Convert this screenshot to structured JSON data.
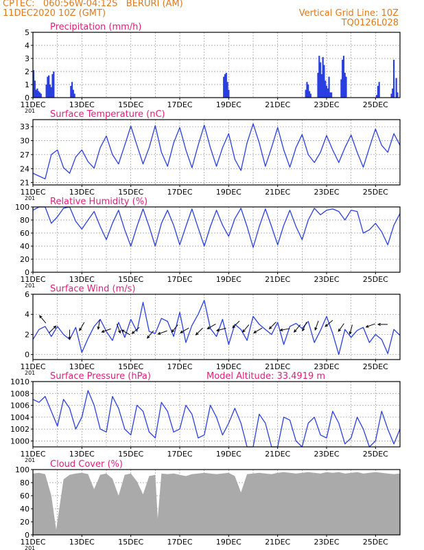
{
  "header": {
    "line1": "CPTEC:   060:56W-04:12S   BERURI (AM)",
    "line2": "11DEC2020 10Z (GMT)",
    "grid_note": "Vertical Grid Line: 10Z",
    "run_code": "TQ0126L028"
  },
  "colors": {
    "header": "#e07a1f",
    "panel_title": "#e0207a",
    "series": "#2a3fe0",
    "bars": "#2a3fe0",
    "cloud": "#aaaaaa",
    "grid": "#9a9a9a",
    "arrows": "#000000"
  },
  "x_axis": {
    "start": "11DEC2020 10Z",
    "end": "26DEC2020 10Z",
    "tick_labels": [
      "11DEC",
      "13DEC",
      "15DEC",
      "17DEC",
      "19DEC",
      "21DEC",
      "23DEC",
      "25DEC"
    ],
    "tick_days": [
      0,
      2,
      4,
      6,
      8,
      10,
      12,
      14
    ],
    "grid_days": [
      1,
      2,
      3,
      4,
      5,
      6,
      7,
      8,
      9,
      10,
      11,
      12,
      13,
      14
    ],
    "left_stub": "201"
  },
  "chart_data": [
    {
      "id": "precip",
      "type": "bar",
      "title": "Precipitation (mm/h)",
      "ylim": [
        0,
        5
      ],
      "yticks": [
        0,
        1,
        2,
        3,
        4,
        5
      ],
      "grid": true,
      "x_unit": "days after 11DEC 10Z",
      "x": [
        0.03,
        0.08,
        0.13,
        0.18,
        0.23,
        0.28,
        0.33,
        0.55,
        0.6,
        0.65,
        0.7,
        0.75,
        0.8,
        0.85,
        1.55,
        1.6,
        1.65,
        1.7,
        7.8,
        7.85,
        7.9,
        7.95,
        8.0,
        11.15,
        11.2,
        11.25,
        11.3,
        11.35,
        11.65,
        11.7,
        11.75,
        11.8,
        11.85,
        11.9,
        11.95,
        12.0,
        12.05,
        12.1,
        12.15,
        12.2,
        12.6,
        12.65,
        12.7,
        12.75,
        12.8,
        14.05,
        14.1,
        14.15,
        14.65,
        14.7,
        14.75,
        14.85,
        14.9
      ],
      "values": [
        2.1,
        1.3,
        0.6,
        0.7,
        0.5,
        0.4,
        0.3,
        1.0,
        1.6,
        1.7,
        1.0,
        0.8,
        1.8,
        2.0,
        0.9,
        1.2,
        0.6,
        0.3,
        1.6,
        1.8,
        1.9,
        1.2,
        0.6,
        0.6,
        1.2,
        1.0,
        0.5,
        0.3,
        1.9,
        3.2,
        2.7,
        1.8,
        3.1,
        2.5,
        1.3,
        0.9,
        0.7,
        1.6,
        0.4,
        0.4,
        1.4,
        2.9,
        3.2,
        1.9,
        1.6,
        0.2,
        0.9,
        1.2,
        0.3,
        0.7,
        2.9,
        1.5,
        0.4
      ]
    },
    {
      "id": "temp",
      "type": "line",
      "title": "Surface Temperature (nC)",
      "ylim": [
        20.5,
        34.5
      ],
      "yticks": [
        21,
        24,
        27,
        30,
        33
      ],
      "grid": true,
      "x_unit": "days after 11DEC 10Z",
      "x": [
        0,
        0.25,
        0.5,
        0.75,
        1,
        1.25,
        1.5,
        1.75,
        2,
        2.25,
        2.5,
        2.75,
        3,
        3.25,
        3.5,
        3.75,
        4,
        4.25,
        4.5,
        4.75,
        5,
        5.25,
        5.5,
        5.75,
        6,
        6.25,
        6.5,
        6.75,
        7,
        7.25,
        7.5,
        7.75,
        8,
        8.25,
        8.5,
        8.75,
        9,
        9.25,
        9.5,
        9.75,
        10,
        10.25,
        10.5,
        10.75,
        11,
        11.25,
        11.5,
        11.75,
        12,
        12.25,
        12.5,
        12.75,
        13,
        13.25,
        13.5,
        13.75,
        14,
        14.25,
        14.5,
        14.75,
        15
      ],
      "values": [
        23,
        22.4,
        21.8,
        27,
        28,
        24.2,
        23,
        26.5,
        28,
        25.5,
        24.1,
        28.5,
        31,
        27,
        25,
        29,
        33.1,
        29,
        25,
        28.5,
        33.2,
        27.5,
        24.5,
        29.5,
        32.8,
        28,
        24.2,
        29,
        33.3,
        28.5,
        24.5,
        28.5,
        31.5,
        26,
        23.6,
        29.5,
        33.6,
        29.5,
        24.5,
        28.5,
        32.8,
        28,
        24.3,
        28.5,
        31.3,
        27,
        25.3,
        27.5,
        31.1,
        28,
        25.3,
        28.5,
        31.2,
        27.5,
        24.3,
        28.5,
        32.5,
        29,
        27.5,
        31.5,
        29
      ]
    },
    {
      "id": "rh",
      "type": "line",
      "title": "Relative Humidity (%)",
      "ylim": [
        0,
        100
      ],
      "yticks": [
        0,
        20,
        40,
        60,
        80,
        100
      ],
      "grid": true,
      "x_unit": "days after 11DEC 10Z",
      "x": [
        0,
        0.25,
        0.5,
        0.75,
        1,
        1.25,
        1.5,
        1.75,
        2,
        2.25,
        2.5,
        2.75,
        3,
        3.25,
        3.5,
        3.75,
        4,
        4.25,
        4.5,
        4.75,
        5,
        5.25,
        5.5,
        5.75,
        6,
        6.25,
        6.5,
        6.75,
        7,
        7.25,
        7.5,
        7.75,
        8,
        8.25,
        8.5,
        8.75,
        9,
        9.25,
        9.5,
        9.75,
        10,
        10.25,
        10.5,
        10.75,
        11,
        11.25,
        11.5,
        11.75,
        12,
        12.25,
        12.5,
        12.75,
        13,
        13.25,
        13.5,
        13.75,
        14,
        14.25,
        14.5,
        14.75,
        15
      ],
      "values": [
        95,
        100,
        100,
        75,
        85,
        98,
        100,
        78,
        66,
        80,
        93,
        70,
        50,
        75,
        95,
        65,
        40,
        70,
        97,
        70,
        40,
        75,
        95,
        72,
        42,
        70,
        97,
        68,
        40,
        70,
        95,
        72,
        55,
        82,
        98,
        70,
        38,
        70,
        97,
        70,
        42,
        72,
        95,
        70,
        50,
        80,
        98,
        88,
        95,
        97,
        93,
        80,
        95,
        93,
        60,
        65,
        75,
        62,
        42,
        72,
        90
      ]
    },
    {
      "id": "wind",
      "type": "line",
      "title": "Surface Wind (m/s)",
      "ylim": [
        -0.5,
        6
      ],
      "yticks": [
        0,
        2,
        4,
        6
      ],
      "grid": true,
      "x_unit": "days after 11DEC 10Z",
      "x": [
        0,
        0.25,
        0.5,
        0.75,
        1,
        1.25,
        1.5,
        1.75,
        2,
        2.25,
        2.5,
        2.75,
        3,
        3.25,
        3.5,
        3.75,
        4,
        4.25,
        4.5,
        4.75,
        5,
        5.25,
        5.5,
        5.75,
        6,
        6.25,
        6.5,
        6.75,
        7,
        7.25,
        7.5,
        7.75,
        8,
        8.25,
        8.5,
        8.75,
        9,
        9.25,
        9.5,
        9.75,
        10,
        10.25,
        10.5,
        10.75,
        11,
        11.25,
        11.5,
        11.75,
        12,
        12.25,
        12.5,
        12.75,
        13,
        13.25,
        13.5,
        13.75,
        14,
        14.25,
        14.5,
        14.75,
        15
      ],
      "values": [
        1.5,
        2.5,
        2.8,
        1.8,
        2.8,
        2.0,
        1.5,
        2.7,
        0.2,
        1.6,
        2.8,
        3.5,
        2.3,
        1.4,
        3.2,
        1.7,
        3.5,
        2.3,
        5.2,
        2.3,
        2.1,
        3.6,
        3.3,
        1.8,
        4.2,
        1.2,
        2.9,
        4.0,
        5.4,
        2.6,
        1.8,
        3.5,
        1.0,
        3.0,
        2.5,
        1.4,
        3.8,
        3.0,
        2.5,
        2.0,
        3.2,
        1.0,
        2.8,
        3.1,
        2.6,
        3.3,
        1.2,
        2.4,
        3.8,
        2.1,
        0.0,
        2.5,
        1.7,
        2.4,
        2.7,
        1.2,
        2.0,
        1.5,
        0.1,
        2.5,
        1.9
      ],
      "arrows_x": [
        0.4,
        0.8,
        1.5,
        2.0,
        2.7,
        3.0,
        3.5,
        3.8,
        4.2,
        4.8,
        5.3,
        5.8,
        6.2,
        6.8,
        7.3,
        7.7,
        8.3,
        8.7,
        9.2,
        9.8,
        10.3,
        10.8,
        11.1,
        11.6,
        12.1,
        12.6,
        13.0,
        13.8,
        14.3
      ],
      "arrows_speed": [
        3.5,
        2.5,
        2.0,
        2.8,
        3.0,
        2.4,
        2.6,
        2.2,
        2.4,
        2.0,
        2.2,
        2.6,
        2.4,
        2.3,
        2.8,
        2.5,
        3.0,
        2.6,
        2.4,
        2.9,
        2.5,
        2.6,
        2.8,
        2.9,
        3.1,
        2.7,
        2.5,
        2.9,
        3.0
      ],
      "arrows_dir_deg": [
        130,
        45,
        270,
        240,
        260,
        200,
        290,
        150,
        220,
        230,
        200,
        230,
        210,
        225,
        210,
        195,
        225,
        230,
        210,
        225,
        190,
        230,
        245,
        250,
        220,
        235,
        255,
        200,
        180
      ]
    },
    {
      "id": "pressure",
      "type": "line",
      "title": "Surface Pressure (hPa)",
      "annotation": "Model Altitude: 33.4919 m",
      "ylim": [
        999,
        1010
      ],
      "yticks": [
        1000,
        1002,
        1004,
        1006,
        1008,
        1010
      ],
      "grid": true,
      "x_unit": "days after 11DEC 10Z",
      "x": [
        0,
        0.25,
        0.5,
        0.75,
        1,
        1.25,
        1.5,
        1.75,
        2,
        2.25,
        2.5,
        2.75,
        3,
        3.25,
        3.5,
        3.75,
        4,
        4.25,
        4.5,
        4.75,
        5,
        5.25,
        5.5,
        5.75,
        6,
        6.25,
        6.5,
        6.75,
        7,
        7.25,
        7.5,
        7.75,
        8,
        8.25,
        8.5,
        8.75,
        9,
        9.25,
        9.5,
        9.75,
        10,
        10.25,
        10.5,
        10.75,
        11,
        11.25,
        11.5,
        11.75,
        12,
        12.25,
        12.5,
        12.75,
        13,
        13.25,
        13.5,
        13.75,
        14,
        14.25,
        14.5,
        14.75,
        15
      ],
      "values": [
        1007.0,
        1006.5,
        1007.5,
        1005.0,
        1002.5,
        1007.0,
        1005.5,
        1002.0,
        1004.0,
        1008.5,
        1006.0,
        1002.0,
        1001.5,
        1007.5,
        1005.5,
        1002.0,
        1001.0,
        1006.0,
        1005.0,
        1001.5,
        1000.5,
        1006.5,
        1005.0,
        1001.5,
        1002.0,
        1006.0,
        1004.5,
        1000.5,
        1001.0,
        1006.0,
        1004.0,
        1001.0,
        1003.0,
        1005.5,
        1003.0,
        999.0,
        999.0,
        1004.5,
        1003.0,
        999.0,
        999.0,
        1004.0,
        1003.5,
        1000.0,
        999.0,
        1003.0,
        1004.0,
        1001.0,
        1000.5,
        1005.0,
        1003.0,
        999.5,
        1000.5,
        1004.0,
        1002.0,
        999.0,
        1000.0,
        1005.0,
        1002.0,
        999.5,
        1002.0
      ]
    },
    {
      "id": "cloud",
      "type": "area",
      "title": "Cloud Cover (%)",
      "ylim": [
        0,
        100
      ],
      "yticks": [
        0,
        20,
        40,
        60,
        80,
        100
      ],
      "grid": true,
      "x_unit": "days after 11DEC 10Z",
      "x": [
        0,
        0.25,
        0.5,
        0.75,
        0.95,
        1.25,
        1.5,
        1.75,
        2,
        2.25,
        2.5,
        2.75,
        3,
        3.25,
        3.5,
        3.75,
        4,
        4.25,
        4.5,
        4.75,
        5,
        5.1,
        5.25,
        5.5,
        5.75,
        6,
        6.25,
        6.5,
        6.75,
        7,
        7.25,
        7.5,
        7.75,
        8,
        8.25,
        8.5,
        8.75,
        9,
        9.25,
        9.5,
        9.75,
        10,
        10.25,
        10.5,
        10.75,
        11,
        11.25,
        11.5,
        11.75,
        12,
        12.25,
        12.5,
        12.75,
        13,
        13.25,
        13.5,
        13.75,
        14,
        14.25,
        14.5,
        14.75,
        15
      ],
      "values": [
        94,
        95,
        93,
        60,
        8,
        85,
        92,
        94,
        95,
        93,
        70,
        92,
        94,
        86,
        60,
        92,
        94,
        82,
        62,
        90,
        92,
        25,
        94,
        93,
        94,
        92,
        90,
        93,
        94,
        95,
        94,
        93,
        94,
        95,
        90,
        65,
        93,
        94,
        95,
        94,
        93,
        95,
        96,
        95,
        94,
        95,
        96,
        95,
        94,
        96,
        95,
        96,
        94,
        95,
        96,
        94,
        95,
        96,
        95,
        94,
        93,
        94
      ]
    }
  ]
}
